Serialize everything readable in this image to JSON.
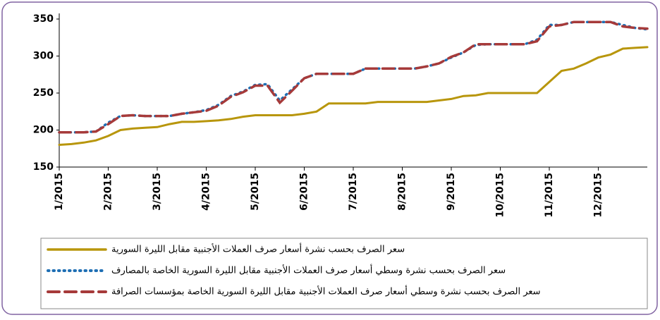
{
  "chart_data": {
    "type": "line",
    "categories": [
      "1/2015",
      null,
      null,
      null,
      "2/2015",
      null,
      null,
      null,
      "3/2015",
      null,
      null,
      null,
      "4/2015",
      null,
      null,
      null,
      "5/2015",
      null,
      null,
      null,
      "6/2015",
      null,
      null,
      null,
      "7/2015",
      null,
      null,
      null,
      "8/2015",
      null,
      null,
      null,
      "9/2015",
      null,
      null,
      null,
      "10/2015",
      null,
      null,
      null,
      "11/2015",
      null,
      null,
      null,
      "12/2015",
      null,
      null,
      null,
      null
    ],
    "series": [
      {
        "name": "سعر الصرف بحسب نشرة أسعار صرف العملات الأجنبية مقابل الليرة السورية",
        "color": "#b8960c",
        "style": "solid",
        "values": [
          180,
          181,
          183,
          186,
          192,
          200,
          202,
          203,
          204,
          208,
          211,
          211,
          212,
          213,
          215,
          218,
          220,
          220,
          220,
          220,
          222,
          225,
          236,
          236,
          236,
          236,
          238,
          238,
          238,
          238,
          238,
          240,
          242,
          246,
          247,
          250,
          250,
          250,
          250,
          250,
          265,
          280,
          283,
          290,
          298,
          302,
          310,
          311,
          312
        ]
      },
      {
        "name": "سعر الصرف بحسب نشرة وسطي أسعار صرف العملات الأجنبية مقابل الليرة السورية الخاصة بالمصارف",
        "color": "#1f6fb4",
        "style": "dotted",
        "values": [
          197,
          197,
          197,
          198,
          210,
          219,
          220,
          219,
          219,
          219,
          222,
          224,
          227,
          234,
          246,
          252,
          261,
          262,
          240,
          255,
          270,
          276,
          276,
          276,
          276,
          283,
          283,
          283,
          283,
          283,
          286,
          290,
          298,
          305,
          315,
          316,
          316,
          316,
          316,
          322,
          342,
          342,
          346,
          346,
          346,
          346,
          342,
          338,
          336
        ]
      },
      {
        "name": "سعر الصرف بحسب نشرة وسطي أسعار صرف العملات الأجنبية مقابل الليرة السورية الخاصة بمؤسسات الصرافة",
        "color": "#a63a3a",
        "style": "dashed",
        "values": [
          197,
          197,
          197,
          198,
          208,
          219,
          220,
          219,
          219,
          219,
          222,
          224,
          226,
          233,
          245,
          251,
          260,
          260,
          237,
          253,
          270,
          276,
          276,
          276,
          276,
          283,
          283,
          283,
          283,
          283,
          286,
          290,
          299,
          305,
          316,
          316,
          316,
          316,
          316,
          320,
          340,
          342,
          346,
          346,
          346,
          346,
          340,
          338,
          337
        ]
      }
    ],
    "ylim": [
      150,
      350
    ],
    "yticks": [
      150,
      200,
      250,
      300,
      350
    ],
    "grid": false
  }
}
